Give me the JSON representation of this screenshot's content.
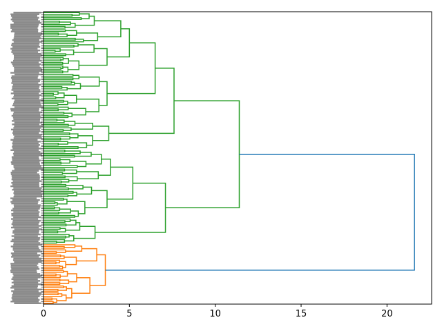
{
  "chart_data": {
    "type": "dendrogram",
    "orientation": "right",
    "xlim": [
      0,
      22.6
    ],
    "xticks": [
      0,
      5,
      10,
      15,
      20
    ],
    "xtick_labels": [
      "0",
      "5",
      "10",
      "15",
      "20"
    ],
    "leaf_label_count": 170,
    "leaf_labels_legible": false,
    "colors": {
      "above_threshold": "#1f77b4",
      "cluster_1": "#2ca02c",
      "cluster_2": "#ff7f0e"
    },
    "merges": [
      {
        "name": "root",
        "height": 21.6,
        "children": [
          "green-cluster",
          "orange-cluster"
        ],
        "color": "above_threshold"
      },
      {
        "name": "green-cluster",
        "height": 11.4,
        "children": [
          "green-upper",
          "green-lower"
        ],
        "color": "cluster_1"
      },
      {
        "name": "green-upper",
        "height": 7.6,
        "children": [
          "green-upper-a",
          "green-upper-b"
        ],
        "color": "cluster_1"
      },
      {
        "name": "green-upper-a",
        "height": 6.5,
        "children": [
          "green-upper-a1",
          "green-upper-a2"
        ],
        "color": "cluster_1"
      },
      {
        "name": "green-upper-a1",
        "height": 5.0,
        "children": [
          "green-upper-a1a",
          "green-upper-a1b"
        ],
        "color": "cluster_1"
      },
      {
        "name": "green-upper-a1a",
        "height": 4.5,
        "children": [],
        "color": "cluster_1"
      },
      {
        "name": "green-upper-a1b",
        "height": 3.7,
        "children": [],
        "color": "cluster_1"
      },
      {
        "name": "green-upper-a2",
        "height": 3.7,
        "children": [],
        "color": "cluster_1"
      },
      {
        "name": "green-upper-b",
        "height": 3.8,
        "children": [],
        "color": "cluster_1"
      },
      {
        "name": "green-lower",
        "height": 7.1,
        "children": [
          "green-lower-a",
          "green-lower-b"
        ],
        "color": "cluster_1"
      },
      {
        "name": "green-lower-a",
        "height": 5.2,
        "children": [
          "green-lower-a1",
          "green-lower-a2"
        ],
        "color": "cluster_1"
      },
      {
        "name": "green-lower-a1",
        "height": 3.9,
        "children": [],
        "color": "cluster_1"
      },
      {
        "name": "green-lower-a2",
        "height": 3.7,
        "children": [],
        "color": "cluster_1"
      },
      {
        "name": "green-lower-b",
        "height": 3.0,
        "children": [],
        "color": "cluster_1"
      },
      {
        "name": "orange-cluster",
        "height": 3.6,
        "children": [
          "orange-upper",
          "orange-lower"
        ],
        "color": "cluster_2"
      },
      {
        "name": "orange-upper",
        "height": 3.1,
        "children": [],
        "color": "cluster_2"
      },
      {
        "name": "orange-lower",
        "height": 2.7,
        "children": [],
        "color": "cluster_2"
      }
    ]
  }
}
